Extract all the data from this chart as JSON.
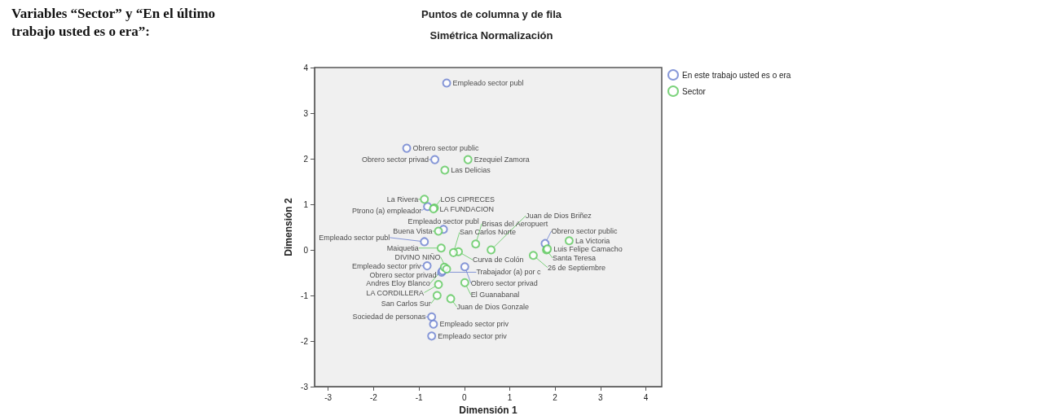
{
  "chart_data": {
    "type": "scatter",
    "title": "Puntos de columna y de fila",
    "subtitle": "Simétrica Normalización",
    "xlabel": "Dimensión 1",
    "ylabel": "Dimensión 2",
    "annotations": [
      "Variables “Sector” y “En el último trabajo usted es o era”:"
    ],
    "xlim": [
      -3.3,
      4.35
    ],
    "xticks": [
      -3,
      -2,
      -1,
      0,
      1,
      2,
      3,
      4
    ],
    "ylim": [
      -3,
      4
    ],
    "yticks": [
      -3,
      -2,
      -1,
      0,
      1,
      2,
      3,
      4
    ],
    "grid": false,
    "legend": "top right",
    "marker": "circle",
    "series": [
      {
        "name": "En este trabajo usted es o era",
        "color": "#6a7fd0",
        "x": [
          -0.39,
          -1.27,
          -0.65,
          -0.81,
          -0.46,
          -0.88,
          -0.82,
          -0.5,
          -0.48,
          0.01,
          1.78,
          -0.72,
          -0.68,
          -0.72
        ],
        "values": [
          3.66,
          2.23,
          1.98,
          0.95,
          0.45,
          0.18,
          -0.35,
          -0.49,
          -0.46,
          -0.37,
          0.14,
          -1.47,
          -1.63,
          -1.89
        ],
        "value_labels": [
          "Empleado sector publ",
          "Obrero sector public",
          "Obrero sector privad",
          "Ptrono (a) empleador",
          "Empleado sector publ",
          "Empleado sector publ",
          "Empleado sector priv",
          "Trabajador (a) por c",
          "Obrero sector privad",
          "Obrero sector privad",
          "Obrero sector public",
          "Sociedad de personas",
          "Empleado sector priv",
          "Empleado sector priv"
        ]
      },
      {
        "name": "Sector",
        "color": "#5dc85d",
        "x": [
          0.08,
          -0.43,
          -0.88,
          -0.66,
          -0.68,
          -0.57,
          0.25,
          0.59,
          2.31,
          -0.51,
          1.81,
          -0.13,
          -0.24,
          1.52,
          1.83,
          -0.57,
          0.01,
          -0.6,
          -0.3,
          -0.44,
          -0.39
        ],
        "values": [
          1.98,
          1.75,
          1.11,
          0.92,
          0.9,
          0.41,
          0.13,
          0.0,
          0.2,
          0.04,
          0.0,
          -0.04,
          -0.06,
          -0.12,
          0.02,
          -0.76,
          -0.72,
          -1.0,
          -1.07,
          -0.38,
          -0.42
        ],
        "value_labels": [
          "Ezequiel Zamora",
          "Las Delicias",
          "La Rivera",
          "LOS CIPRECES",
          "LA FUNDACION",
          "Buena Vista",
          "Brisas del Aeropuert",
          "Juan de Dios Briñez",
          "La Victoria",
          "Maiquetia",
          "Santa Teresa",
          "Curva de Colón",
          "San Carlos Norte",
          "26 de Septiembre",
          "Luis Felipe Camacho",
          "LA CORDILLERA",
          "El Guanabanal",
          "San Carlos Sur",
          "Juan de Dios Gonzale",
          "Andres Eloy Blanco",
          "DIVINO NIÑO"
        ]
      }
    ]
  }
}
